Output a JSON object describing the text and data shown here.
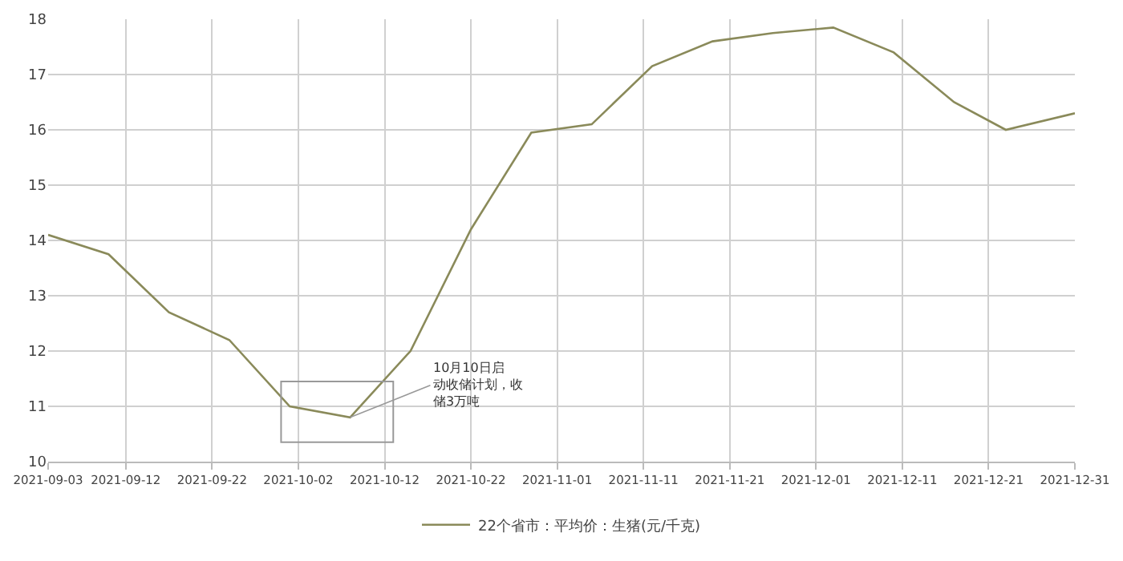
{
  "chart_data": {
    "type": "line",
    "x": [
      "2021-09-03",
      "2021-09-10",
      "2021-09-17",
      "2021-09-24",
      "2021-10-01",
      "2021-10-08",
      "2021-10-15",
      "2021-10-22",
      "2021-10-29",
      "2021-11-05",
      "2021-11-12",
      "2021-11-19",
      "2021-11-26",
      "2021-12-03",
      "2021-12-10",
      "2021-12-17",
      "2021-12-23",
      "2021-12-31"
    ],
    "series": [
      {
        "name": "22个省市：平均价：生猪(元/千克)",
        "color": "#8a8a5a",
        "values": [
          14.1,
          13.75,
          12.7,
          12.2,
          11.0,
          10.8,
          12.0,
          14.2,
          15.95,
          16.1,
          17.15,
          17.6,
          17.75,
          17.85,
          17.4,
          16.5,
          16.0,
          16.3
        ]
      }
    ],
    "xlim": [
      "2021-09-03",
      "2021-12-31"
    ],
    "xticks": [
      "2021-09-03",
      "2021-09-12",
      "2021-09-22",
      "2021-10-02",
      "2021-10-12",
      "2021-10-22",
      "2021-11-01",
      "2021-11-11",
      "2021-11-21",
      "2021-12-01",
      "2021-12-11",
      "2021-12-21",
      "2021-12-31"
    ],
    "ylim": [
      10,
      18
    ],
    "yticks": [
      10,
      11,
      12,
      13,
      14,
      15,
      16,
      17,
      18
    ],
    "annotations": [
      {
        "text": "10月10日启动收储计划，收储3万吨",
        "x": "2021-10-08",
        "y": 10.8
      }
    ],
    "grid": true,
    "legend": "bottom",
    "marker": "none",
    "line_style": "solid"
  }
}
